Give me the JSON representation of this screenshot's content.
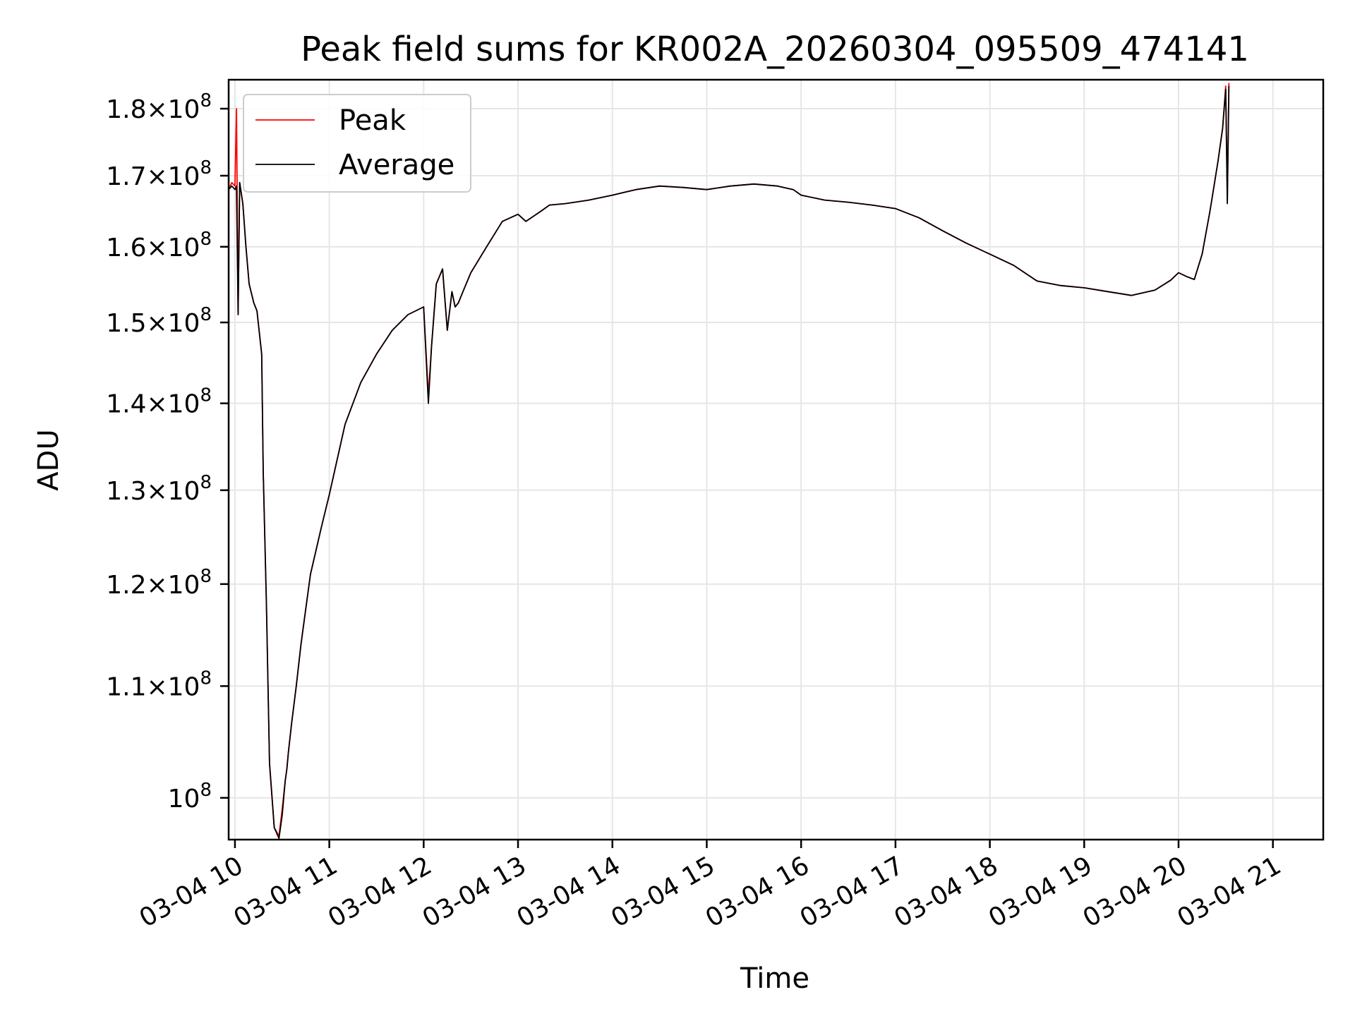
{
  "chart_data": {
    "type": "line",
    "title": "Peak field sums for KR002A_20260304_095509_474141",
    "xlabel": "Time",
    "ylabel": "ADU",
    "y_scale": "log",
    "ylim": [
      96500000,
      184500000
    ],
    "xlim": [
      "03-04 09:56",
      "03-04 21:32"
    ],
    "grid": true,
    "legend_position": "top-left",
    "x_tick_labels": [
      "03-04 10",
      "03-04 11",
      "03-04 12",
      "03-04 13",
      "03-04 14",
      "03-04 15",
      "03-04 16",
      "03-04 17",
      "03-04 18",
      "03-04 19",
      "03-04 20",
      "03-04 21"
    ],
    "y_ticks": [
      {
        "value": 100000000,
        "mantissa": "",
        "exp": "8"
      },
      {
        "value": 110000000,
        "mantissa": "1.1",
        "exp": "8"
      },
      {
        "value": 120000000,
        "mantissa": "1.2",
        "exp": "8"
      },
      {
        "value": 130000000,
        "mantissa": "1.3",
        "exp": "8"
      },
      {
        "value": 140000000,
        "mantissa": "1.4",
        "exp": "8"
      },
      {
        "value": 150000000,
        "mantissa": "1.5",
        "exp": "8"
      },
      {
        "value": 160000000,
        "mantissa": "1.6",
        "exp": "8"
      },
      {
        "value": 170000000,
        "mantissa": "1.7",
        "exp": "8"
      },
      {
        "value": 180000000,
        "mantissa": "1.8",
        "exp": "8"
      }
    ],
    "series": [
      {
        "name": "Peak",
        "color": "#ff0000",
        "x": [
          "03-04 09:56",
          "03-04 09:58",
          "03-04 10:00",
          "03-04 10:01",
          "03-04 10:02",
          "03-04 10:03",
          "03-04 10:05",
          "03-04 10:07",
          "03-04 10:09",
          "03-04 10:12",
          "03-04 10:14",
          "03-04 10:17",
          "03-04 10:18",
          "03-04 10:20",
          "03-04 10:22",
          "03-04 10:25",
          "03-04 10:28",
          "03-04 10:30",
          "03-04 10:32",
          "03-04 10:33",
          "03-04 10:34",
          "03-04 10:36",
          "03-04 10:39",
          "03-04 10:42",
          "03-04 10:48",
          "03-04 10:55",
          "03-04 11:00",
          "03-04 11:10",
          "03-04 11:20",
          "03-04 11:30",
          "03-04 11:40",
          "03-04 11:50",
          "03-04 12:00",
          "03-04 12:03",
          "03-04 12:05",
          "03-04 12:08",
          "03-04 12:12",
          "03-04 12:15",
          "03-04 12:18",
          "03-04 12:20",
          "03-04 12:22",
          "03-04 12:25",
          "03-04 12:30",
          "03-04 12:40",
          "03-04 12:50",
          "03-04 13:00",
          "03-04 13:05",
          "03-04 13:15",
          "03-04 13:20",
          "03-04 13:30",
          "03-04 13:45",
          "03-04 14:00",
          "03-04 14:15",
          "03-04 14:30",
          "03-04 14:45",
          "03-04 15:00",
          "03-04 15:15",
          "03-04 15:30",
          "03-04 15:45",
          "03-04 15:55",
          "03-04 16:00",
          "03-04 16:15",
          "03-04 16:30",
          "03-04 16:45",
          "03-04 17:00",
          "03-04 17:15",
          "03-04 17:30",
          "03-04 17:45",
          "03-04 18:00",
          "03-04 18:15",
          "03-04 18:30",
          "03-04 18:45",
          "03-04 19:00",
          "03-04 19:15",
          "03-04 19:30",
          "03-04 19:45",
          "03-04 19:55",
          "03-04 20:00",
          "03-04 20:05",
          "03-04 20:10",
          "03-04 20:15",
          "03-04 20:20",
          "03-04 20:25",
          "03-04 20:28",
          "03-04 20:30",
          "03-04 20:31",
          "03-04 20:32"
        ],
        "y": [
          168000000,
          169000000,
          168500000,
          180000000,
          151000000,
          169000000,
          166000000,
          160000000,
          155000000,
          152500000,
          151500000,
          146000000,
          132000000,
          118000000,
          103000000,
          97500000,
          96800000,
          99000000,
          101500000,
          102500000,
          104000000,
          106500000,
          110000000,
          114000000,
          121000000,
          126000000,
          129500000,
          137500000,
          142500000,
          146000000,
          149000000,
          151000000,
          152000000,
          141000000,
          147000000,
          155000000,
          157000000,
          149000000,
          154000000,
          152000000,
          152500000,
          154000000,
          156500000,
          160000000,
          163500000,
          164500000,
          163500000,
          165000000,
          165800000,
          166000000,
          166500000,
          167200000,
          168000000,
          168500000,
          168300000,
          168000000,
          168500000,
          168800000,
          168500000,
          168000000,
          167200000,
          166500000,
          166200000,
          165800000,
          165300000,
          164000000,
          162200000,
          160500000,
          159000000,
          157500000,
          155400000,
          154800000,
          154500000,
          154000000,
          153500000,
          154200000,
          155500000,
          156500000,
          156000000,
          155600000,
          159000000,
          165000000,
          172000000,
          177000000,
          183500000,
          166500000,
          184000000
        ]
      },
      {
        "name": "Average",
        "color": "#000000",
        "x": [
          "03-04 09:56",
          "03-04 09:58",
          "03-04 10:00",
          "03-04 10:01",
          "03-04 10:02",
          "03-04 10:03",
          "03-04 10:05",
          "03-04 10:07",
          "03-04 10:09",
          "03-04 10:12",
          "03-04 10:14",
          "03-04 10:17",
          "03-04 10:18",
          "03-04 10:20",
          "03-04 10:22",
          "03-04 10:25",
          "03-04 10:28",
          "03-04 10:30",
          "03-04 10:32",
          "03-04 10:33",
          "03-04 10:34",
          "03-04 10:36",
          "03-04 10:39",
          "03-04 10:42",
          "03-04 10:48",
          "03-04 10:55",
          "03-04 11:00",
          "03-04 11:10",
          "03-04 11:20",
          "03-04 11:30",
          "03-04 11:40",
          "03-04 11:50",
          "03-04 12:00",
          "03-04 12:03",
          "03-04 12:05",
          "03-04 12:08",
          "03-04 12:12",
          "03-04 12:15",
          "03-04 12:18",
          "03-04 12:20",
          "03-04 12:22",
          "03-04 12:25",
          "03-04 12:30",
          "03-04 12:40",
          "03-04 12:50",
          "03-04 13:00",
          "03-04 13:05",
          "03-04 13:15",
          "03-04 13:20",
          "03-04 13:30",
          "03-04 13:45",
          "03-04 14:00",
          "03-04 14:15",
          "03-04 14:30",
          "03-04 14:45",
          "03-04 15:00",
          "03-04 15:15",
          "03-04 15:30",
          "03-04 15:45",
          "03-04 15:55",
          "03-04 16:00",
          "03-04 16:15",
          "03-04 16:30",
          "03-04 16:45",
          "03-04 17:00",
          "03-04 17:15",
          "03-04 17:30",
          "03-04 17:45",
          "03-04 18:00",
          "03-04 18:15",
          "03-04 18:30",
          "03-04 18:45",
          "03-04 19:00",
          "03-04 19:15",
          "03-04 19:30",
          "03-04 19:45",
          "03-04 19:55",
          "03-04 20:00",
          "03-04 20:05",
          "03-04 20:10",
          "03-04 20:15",
          "03-04 20:20",
          "03-04 20:25",
          "03-04 20:28",
          "03-04 20:30",
          "03-04 20:31",
          "03-04 20:32"
        ],
        "y": [
          168000000,
          168500000,
          168000000,
          168500000,
          151000000,
          169000000,
          166000000,
          160000000,
          155000000,
          152500000,
          151500000,
          146000000,
          132000000,
          118000000,
          103000000,
          97500000,
          96600000,
          98500000,
          101500000,
          102500000,
          104000000,
          106500000,
          110000000,
          114000000,
          121000000,
          126000000,
          129500000,
          137500000,
          142500000,
          146000000,
          149000000,
          151000000,
          152000000,
          140000000,
          147000000,
          155000000,
          157000000,
          149000000,
          154000000,
          152000000,
          152500000,
          154000000,
          156500000,
          160000000,
          163500000,
          164500000,
          163500000,
          165000000,
          165800000,
          166000000,
          166500000,
          167200000,
          168000000,
          168500000,
          168300000,
          168000000,
          168500000,
          168800000,
          168500000,
          168000000,
          167200000,
          166500000,
          166200000,
          165800000,
          165300000,
          164000000,
          162200000,
          160500000,
          159000000,
          157500000,
          155400000,
          154800000,
          154500000,
          154000000,
          153500000,
          154200000,
          155500000,
          156500000,
          156000000,
          155600000,
          159000000,
          165000000,
          172000000,
          177000000,
          183000000,
          166000000,
          183500000
        ]
      }
    ]
  }
}
